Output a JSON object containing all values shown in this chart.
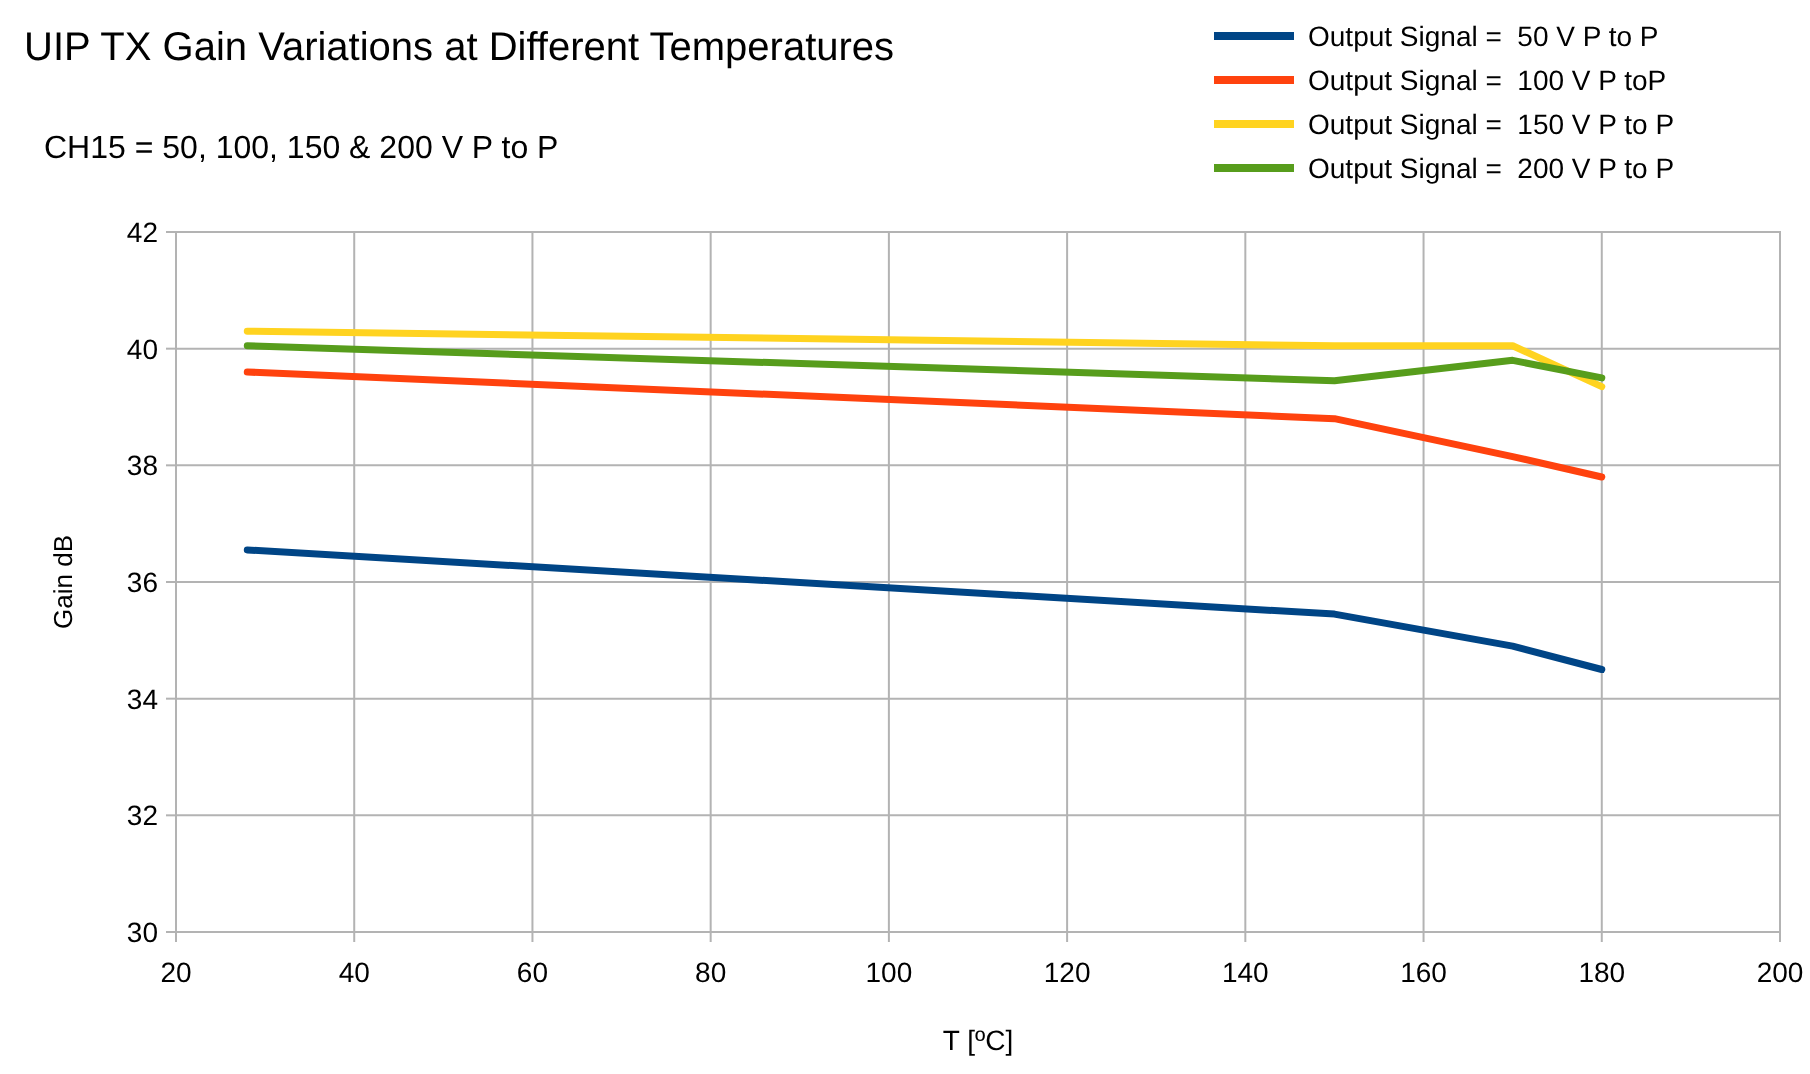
{
  "chart_data": {
    "type": "line",
    "title": "UIP TX Gain Variations at Different Temperatures",
    "subtitle": "CH15 = 50, 100, 150 & 200 V P to P",
    "xlabel": "T [ºC]",
    "ylabel": "Gain dB",
    "x": [
      28,
      150,
      170,
      180
    ],
    "series": [
      {
        "name": "Output Signal =  50 V P to P",
        "color": "#004586",
        "values": [
          36.55,
          35.45,
          34.9,
          34.5
        ]
      },
      {
        "name": "Output Signal =  100 V P toP",
        "color": "#ff420e",
        "values": [
          39.6,
          38.8,
          38.15,
          37.8
        ]
      },
      {
        "name": "Output Signal =  150 V P to P",
        "color": "#ffd320",
        "values": [
          40.3,
          40.05,
          40.05,
          39.35
        ]
      },
      {
        "name": "Output Signal =  200 V P to P",
        "color": "#579d1c",
        "values": [
          40.05,
          39.45,
          39.8,
          39.5
        ]
      }
    ],
    "xlim": [
      20,
      200
    ],
    "xticks": [
      20,
      40,
      60,
      80,
      100,
      120,
      140,
      160,
      180,
      200
    ],
    "ylim": [
      30,
      42
    ],
    "yticks": [
      30,
      32,
      34,
      36,
      38,
      40,
      42
    ],
    "grid": true,
    "legend": "top right",
    "marker": "none",
    "line_style": "solid"
  }
}
